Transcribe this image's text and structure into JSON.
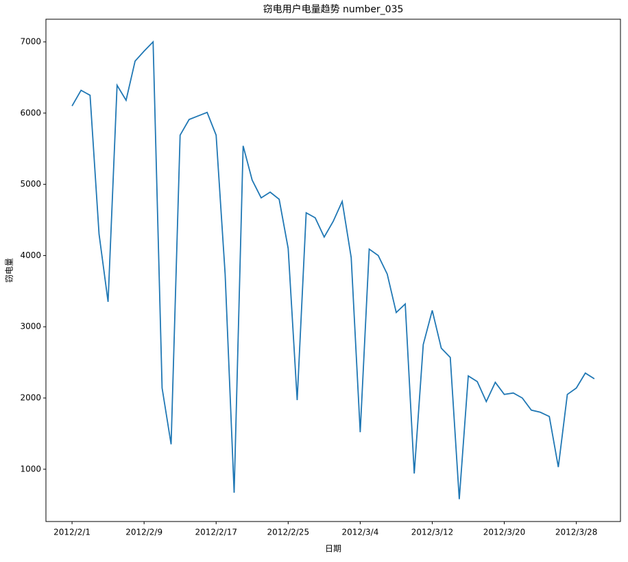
{
  "chart_data": {
    "type": "line",
    "title": "窃电用户电量趋势 number_035",
    "x_label": "日期",
    "y_label": "窃电量",
    "x": [
      "2012/2/1",
      "2012/2/2",
      "2012/2/3",
      "2012/2/4",
      "2012/2/5",
      "2012/2/6",
      "2012/2/7",
      "2012/2/8",
      "2012/2/9",
      "2012/2/10",
      "2012/2/11",
      "2012/2/12",
      "2012/2/13",
      "2012/2/14",
      "2012/2/15",
      "2012/2/16",
      "2012/2/17",
      "2012/2/18",
      "2012/2/19",
      "2012/2/20",
      "2012/2/21",
      "2012/2/22",
      "2012/2/23",
      "2012/2/24",
      "2012/2/25",
      "2012/2/26",
      "2012/2/27",
      "2012/2/28",
      "2012/2/29",
      "2012/3/1",
      "2012/3/2",
      "2012/3/3",
      "2012/3/4",
      "2012/3/5",
      "2012/3/6",
      "2012/3/7",
      "2012/3/8",
      "2012/3/9",
      "2012/3/10",
      "2012/3/11",
      "2012/3/12",
      "2012/3/13",
      "2012/3/14",
      "2012/3/15",
      "2012/3/16",
      "2012/3/17",
      "2012/3/18",
      "2012/3/19",
      "2012/3/20",
      "2012/3/21",
      "2012/3/22",
      "2012/3/23",
      "2012/3/24",
      "2012/3/25",
      "2012/3/26",
      "2012/3/27",
      "2012/3/28",
      "2012/3/29",
      "2012/3/30"
    ],
    "values": [
      6100,
      6320,
      6250,
      4300,
      3350,
      6390,
      6180,
      6730,
      6870,
      7000,
      2140,
      1350,
      5690,
      5910,
      5960,
      6010,
      5690,
      3740,
      670,
      5540,
      5060,
      4810,
      4890,
      4790,
      4100,
      1970,
      4600,
      4530,
      4260,
      4480,
      4760,
      3970,
      1520,
      4090,
      4000,
      3740,
      3200,
      3320,
      940,
      2750,
      3230,
      2700,
      2570,
      580,
      2310,
      2230,
      1950,
      2220,
      2050,
      2070,
      2000,
      1830,
      1800,
      1740,
      1030,
      2050,
      2140,
      2350,
      2270
    ],
    "color": "#1f77b4",
    "xticks": [
      "2012/2/1",
      "2012/2/9",
      "2012/2/17",
      "2012/2/25",
      "2012/3/4",
      "2012/3/12",
      "2012/3/20",
      "2012/3/28"
    ],
    "ylim": [
      266,
      7318
    ],
    "yticks": [
      1000,
      2000,
      3000,
      4000,
      5000,
      6000,
      7000
    ]
  }
}
